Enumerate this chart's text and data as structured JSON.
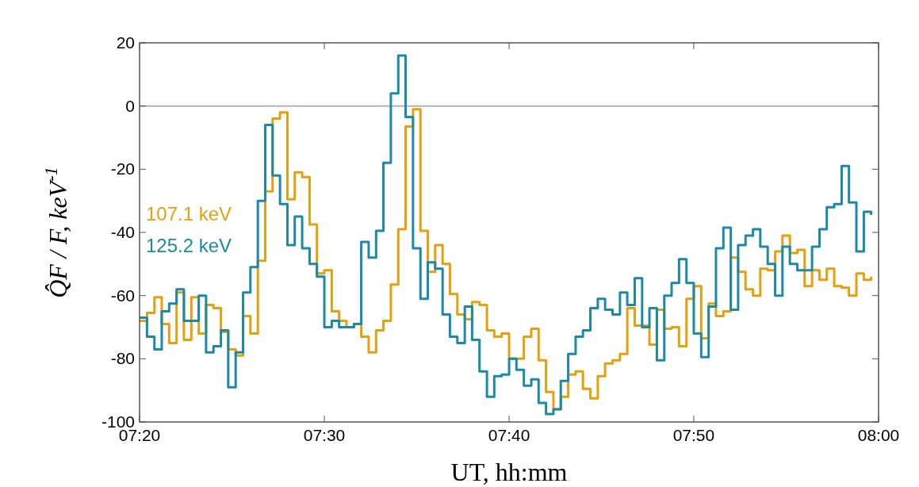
{
  "chart_data": {
    "type": "step",
    "xlabel": "UT, hh:mm",
    "ylabel": "Q̂F / F, keV$^{-1}$",
    "x": [
      7.3333,
      7.34,
      7.3467,
      7.3533,
      7.36,
      7.3667,
      7.3733,
      7.38,
      7.3867,
      7.3933,
      7.4,
      7.4067,
      7.4133,
      7.42,
      7.4267,
      7.4333,
      7.44,
      7.4467,
      7.4533,
      7.46,
      7.4667,
      7.4733,
      7.48,
      7.4867,
      7.4933,
      7.5,
      7.5067,
      7.5133,
      7.52,
      7.5267,
      7.5333,
      7.54,
      7.5467,
      7.5533,
      7.56,
      7.5667,
      7.5733,
      7.58,
      7.5867,
      7.5933,
      7.6,
      7.6067,
      7.6133,
      7.62,
      7.6267,
      7.6333,
      7.64,
      7.6467,
      7.6533,
      7.66,
      7.6667,
      7.6733,
      7.68,
      7.6867,
      7.6933,
      7.7,
      7.7067,
      7.7133,
      7.72,
      7.7267,
      7.7333,
      7.74,
      7.7467,
      7.7533,
      7.76,
      7.7667,
      7.7733,
      7.78,
      7.7867,
      7.7933,
      7.8,
      7.8067,
      7.8133,
      7.82,
      7.8267,
      7.8333,
      7.84,
      7.8467,
      7.8533,
      7.86,
      7.8667,
      7.8733,
      7.88,
      7.8867,
      7.8933,
      7.9,
      7.9067,
      7.9133,
      7.92,
      7.9267,
      7.9333,
      7.94,
      7.9467,
      7.9533,
      7.96,
      7.9667,
      7.9733,
      7.98,
      7.9867,
      7.9933
    ],
    "series": [
      {
        "name": "107.1 keV",
        "color": "#e89f0c",
        "values": [
          -68,
          -65.5,
          -60.5,
          -69,
          -75,
          -59,
          -74,
          -60.5,
          -72,
          -63,
          -64,
          -71.5,
          -77,
          -79,
          -66.5,
          -72,
          -49,
          -27,
          -4,
          -2,
          -29.5,
          -21,
          -22.5,
          -37.5,
          -53,
          -52,
          -65,
          -68,
          -70,
          -69,
          -73,
          -78,
          -71,
          -68,
          -56.5,
          -39,
          -6.5,
          -1,
          -39.5,
          -52.5,
          -44,
          -50,
          -59.5,
          -66,
          -67.5,
          -62,
          -63,
          -71,
          -73,
          -72,
          -80,
          -80,
          -73,
          -70.5,
          -80.5,
          -90.5,
          -96,
          -92,
          -85,
          -84,
          -89.5,
          -92.5,
          -85.5,
          -81.5,
          -80.5,
          -78.5,
          -64,
          -69.5,
          -69.5,
          -75.5,
          -64.5,
          -70.5,
          -70,
          -76,
          -61,
          -57,
          -73.5,
          -62.5,
          -66.5,
          -65,
          -48,
          -52.5,
          -58,
          -60,
          -51.5,
          -52,
          -46,
          -41,
          -46.5,
          -45.5,
          -57,
          -52,
          -55,
          -51.5,
          -57,
          -57.5,
          -60,
          -53,
          -55,
          -54
        ]
      },
      {
        "name": "125.2 keV",
        "color": "#1a8aa8",
        "values": [
          -67,
          -73,
          -77,
          -65,
          -62.5,
          -58,
          -68,
          -68,
          -60,
          -78,
          -76,
          -71,
          -89,
          -78,
          -59,
          -51,
          -30,
          -6,
          -22,
          -31,
          -44,
          -35,
          -45,
          -50,
          -54,
          -70,
          -68,
          -70,
          -70,
          -69,
          -43,
          -48,
          -39.5,
          -18,
          4,
          16,
          -3.5,
          -45,
          -61,
          -49.5,
          -51.5,
          -66,
          -73,
          -75,
          -63.5,
          -74,
          -84,
          -92,
          -85.5,
          -85,
          -80,
          -83.5,
          -88.5,
          -86.5,
          -94,
          -97.5,
          -96,
          -87,
          -78.5,
          -73,
          -71,
          -64,
          -61,
          -64.5,
          -66,
          -59,
          -63,
          -54.5,
          -70,
          -64,
          -80.5,
          -60,
          -56,
          -48.5,
          -56,
          -72,
          -79.5,
          -63.5,
          -45,
          -38.5,
          -64.5,
          -44,
          -41,
          -39,
          -44.5,
          -50,
          -60,
          -44.5,
          -50,
          -52,
          -52,
          -44.5,
          -39,
          -32,
          -31,
          -19,
          -30.5,
          -46,
          -33.5,
          -34.5
        ]
      }
    ],
    "xlim": [
      7.3333,
      8
    ],
    "xticks": [
      {
        "value": 7.3333,
        "label": "07:20"
      },
      {
        "value": 7.5,
        "label": "07:30"
      },
      {
        "value": 7.6667,
        "label": "07:40"
      },
      {
        "value": 7.8333,
        "label": "07:50"
      },
      {
        "value": 8,
        "label": "08:00"
      }
    ],
    "ylim": [
      -100,
      20
    ],
    "yticks": [
      -100,
      -80,
      -60,
      -40,
      -20,
      0,
      20
    ],
    "ref_lines": [
      {
        "axis": "y",
        "value": 0,
        "color": "#b4b4b4"
      }
    ],
    "legend": "left",
    "grid": false,
    "line_style": "solid"
  }
}
